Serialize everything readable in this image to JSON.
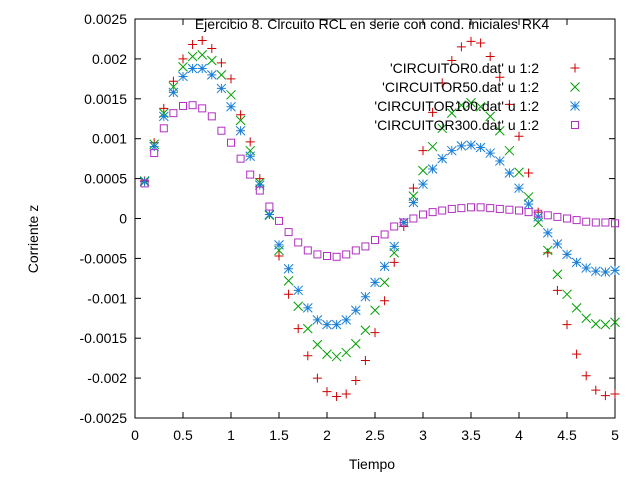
{
  "chart_data": {
    "type": "scatter",
    "title": "Ejercicio 8. Circuito RCL en serie con cond. iniciales RK4",
    "xlabel": "Tiempo",
    "ylabel": "Corriente z",
    "xlim": [
      0,
      5
    ],
    "ylim": [
      -0.0025,
      0.0025
    ],
    "xticks": [
      "0",
      "0.5",
      "1",
      "1.5",
      "2",
      "2.5",
      "3",
      "3.5",
      "4",
      "4.5",
      "5"
    ],
    "yticks": [
      "-0.0025",
      "-0.002",
      "-0.0015",
      "-0.001",
      "-0.0005",
      "0",
      "0.0005",
      "0.001",
      "0.0015",
      "0.002",
      "0.0025"
    ],
    "grid": false,
    "legend_position": "top-right",
    "x": [
      0.1,
      0.2,
      0.3,
      0.4,
      0.5,
      0.6,
      0.7,
      0.8,
      0.9,
      1.0,
      1.1,
      1.2,
      1.3,
      1.4,
      1.5,
      1.6,
      1.7,
      1.8,
      1.9,
      2.0,
      2.1,
      2.2,
      2.3,
      2.4,
      2.5,
      2.6,
      2.7,
      2.8,
      2.9,
      3.0,
      3.1,
      3.2,
      3.3,
      3.4,
      3.5,
      3.6,
      3.7,
      3.8,
      3.9,
      4.0,
      4.1,
      4.2,
      4.3,
      4.4,
      4.5,
      4.6,
      4.7,
      4.8,
      4.9,
      5.0
    ],
    "series": [
      {
        "name": "'CIRCUITOR0.dat' u 1:2",
        "marker": "plus",
        "color": "#cc0000",
        "values": [
          0.00047,
          0.00095,
          0.00138,
          0.00172,
          0.002,
          0.00218,
          0.00223,
          0.00213,
          0.00195,
          0.00175,
          0.0013,
          0.00096,
          0.0005,
          5e-05,
          -0.00047,
          -0.00095,
          -0.00138,
          -0.00172,
          -0.002,
          -0.00217,
          -0.00223,
          -0.0022,
          -0.00203,
          -0.00178,
          -0.00143,
          -0.00103,
          -0.00055,
          -0.0001,
          0.00038,
          0.00085,
          0.00133,
          0.0017,
          0.00198,
          0.00215,
          0.00222,
          0.0022,
          0.00203,
          0.00177,
          0.00143,
          0.00103,
          0.00057,
          8e-05,
          -0.00043,
          -0.0009,
          -0.00133,
          -0.0017,
          -0.00197,
          -0.00215,
          -0.00222,
          -0.0022
        ]
      },
      {
        "name": "'CIRCUITOR50.dat' u 1:2",
        "marker": "cross",
        "color": "#00a000",
        "values": [
          0.00047,
          0.00093,
          0.00132,
          0.00165,
          0.0019,
          0.00203,
          0.00205,
          0.00198,
          0.0018,
          0.00155,
          0.00123,
          0.00085,
          0.00045,
          4e-05,
          -0.0004,
          -0.00078,
          -0.0011,
          -0.00138,
          -0.00158,
          -0.0017,
          -0.00173,
          -0.00168,
          -0.00157,
          -0.0014,
          -0.00115,
          -0.0008,
          -0.00043,
          -5e-05,
          0.00028,
          0.0006,
          0.0009,
          0.00113,
          0.00132,
          0.00142,
          0.00145,
          0.0014,
          0.00128,
          0.0011,
          0.00085,
          0.00058,
          0.00027,
          -5e-05,
          -0.0004,
          -0.0007,
          -0.00095,
          -0.00112,
          -0.00125,
          -0.00132,
          -0.00133,
          -0.0013
        ]
      },
      {
        "name": "'CIRCUITOR100.dat' u 1:2",
        "marker": "star",
        "color": "#1a7fd6",
        "values": [
          0.00046,
          0.0009,
          0.00128,
          0.00158,
          0.00178,
          0.00188,
          0.00188,
          0.0018,
          0.00163,
          0.0014,
          0.0011,
          0.00078,
          0.00042,
          5e-05,
          -0.00033,
          -0.00063,
          -0.0009,
          -0.00112,
          -0.00127,
          -0.00133,
          -0.00133,
          -0.00127,
          -0.00115,
          -0.00098,
          -0.0008,
          -0.0006,
          -0.00035,
          -5e-05,
          0.0002,
          0.00043,
          0.00062,
          0.00075,
          0.00085,
          0.00091,
          0.00092,
          0.00089,
          0.00082,
          0.00072,
          0.00057,
          0.00038,
          0.00018,
          2e-05,
          -0.00018,
          -0.00032,
          -0.00045,
          -0.00055,
          -0.00062,
          -0.00066,
          -0.00067,
          -0.00065
        ]
      },
      {
        "name": "'CIRCUITOR300.dat' u 1:2",
        "marker": "square",
        "color": "#b030c0",
        "values": [
          0.00044,
          0.00082,
          0.00113,
          0.00132,
          0.00141,
          0.00142,
          0.00138,
          0.00128,
          0.0011,
          0.00095,
          0.00075,
          0.00055,
          0.00035,
          0.00015,
          -3e-05,
          -0.00017,
          -0.0003,
          -0.0004,
          -0.00045,
          -0.00047,
          -0.00048,
          -0.00045,
          -0.0004,
          -0.00035,
          -0.00027,
          -0.0002,
          -0.0001,
          -5e-05,
          0.0,
          5e-05,
          8e-05,
          0.0001,
          0.00012,
          0.00013,
          0.00014,
          0.00014,
          0.00013,
          0.00012,
          0.00011,
          0.0001,
          8e-05,
          6e-05,
          4e-05,
          2e-05,
          0.0,
          -2e-05,
          -4e-05,
          -5e-05,
          -5e-05,
          -6e-05
        ]
      }
    ]
  }
}
